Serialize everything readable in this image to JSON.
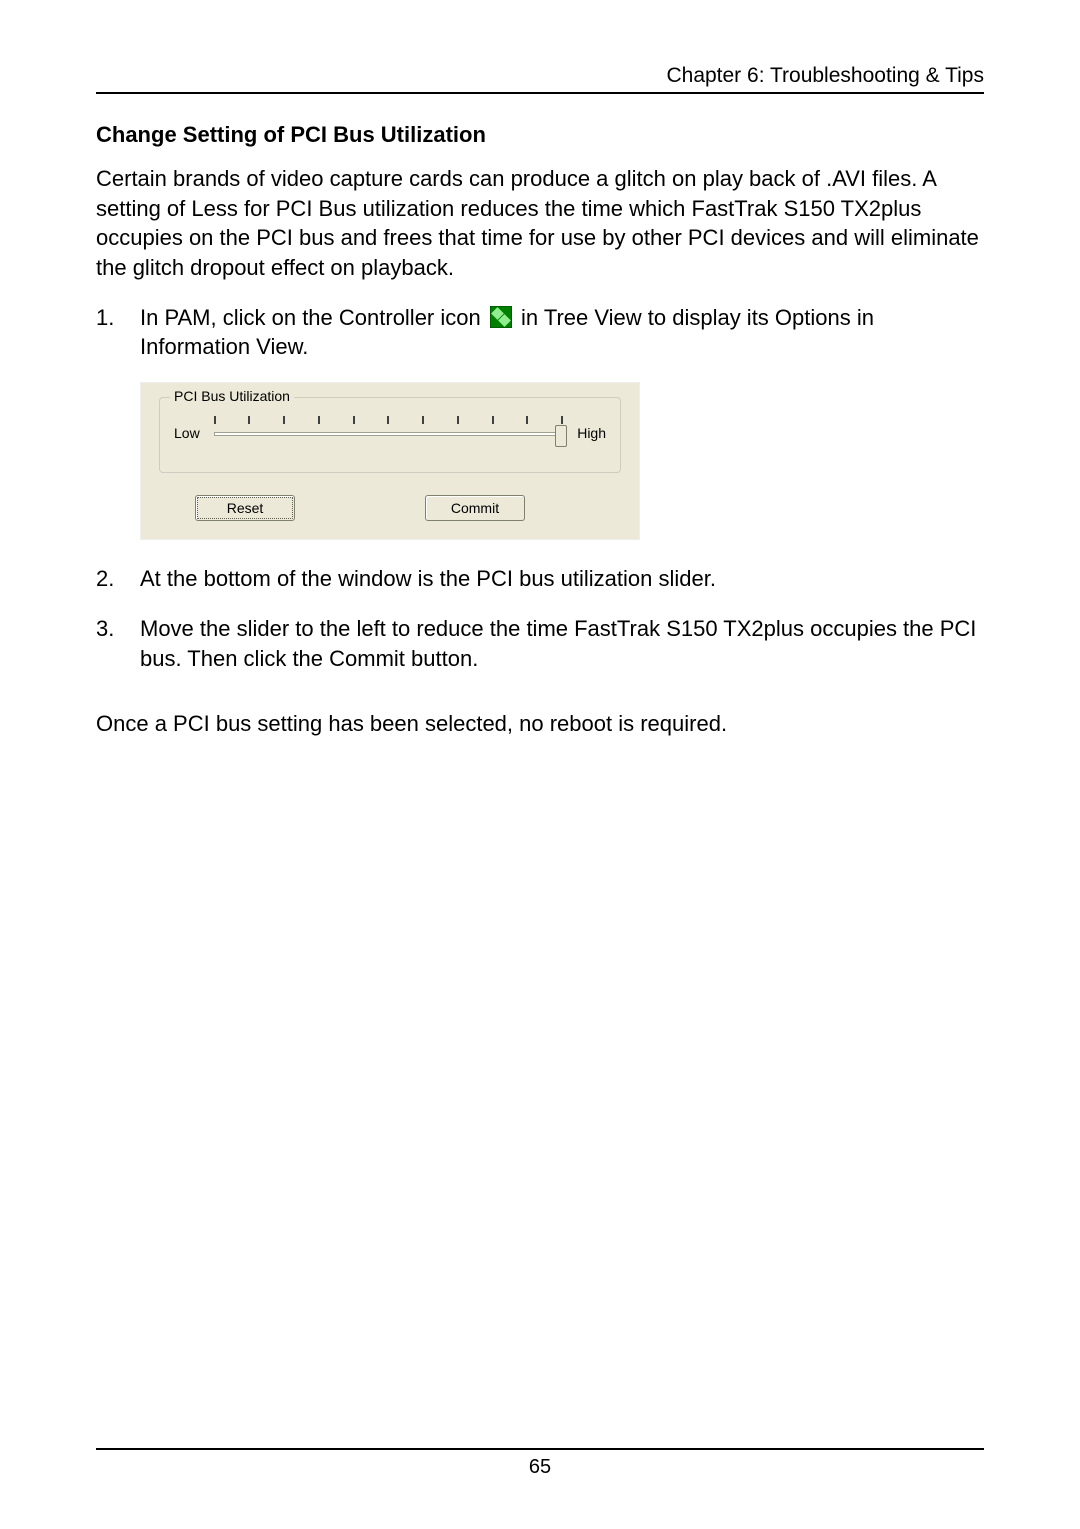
{
  "header": {
    "chapter": "Chapter 6: Troubleshooting & Tips"
  },
  "section": {
    "title": "Change Setting of PCI Bus Utilization",
    "intro": "Certain brands of video capture cards can produce a glitch on play back of .AVI files. A setting of Less for PCI Bus utilization reduces the time which FastTrak S150 TX2plus occupies on the PCI bus and frees that time for use by other PCI devices and will eliminate the glitch dropout effect on playback."
  },
  "steps": {
    "s1": {
      "num": "1.",
      "before_icon": "In PAM, click on the Controller icon",
      "after_icon": " in Tree View to display its Options in Information View."
    },
    "s2": {
      "num": "2.",
      "text": "At the bottom of the window is the PCI bus utilization slider."
    },
    "s3": {
      "num": "3.",
      "text": "Move the slider to the left to reduce the time FastTrak S150 TX2plus occupies the PCI bus. Then click the Commit button."
    }
  },
  "closing": "Once a PCI bus setting has been selected, no reboot is required.",
  "footer": {
    "page_number": "65"
  },
  "pci_panel": {
    "legend": "PCI Bus Utilization",
    "low_label": "Low",
    "high_label": "High",
    "reset_label": "Reset",
    "commit_label": "Commit",
    "tick_count": 11,
    "slider_position_pct": 100,
    "colors": {
      "panel_bg": "#ece9d8",
      "groove_bg": "#ffffff",
      "groove_border": "#a0a090",
      "tick_color": "#404040",
      "btn_bg": "#ece9d8",
      "btn_border": "#808070"
    },
    "fontsize": 14
  },
  "icon": {
    "name": "controller-icon",
    "bg": "#008000",
    "fg": "#90ee90"
  }
}
